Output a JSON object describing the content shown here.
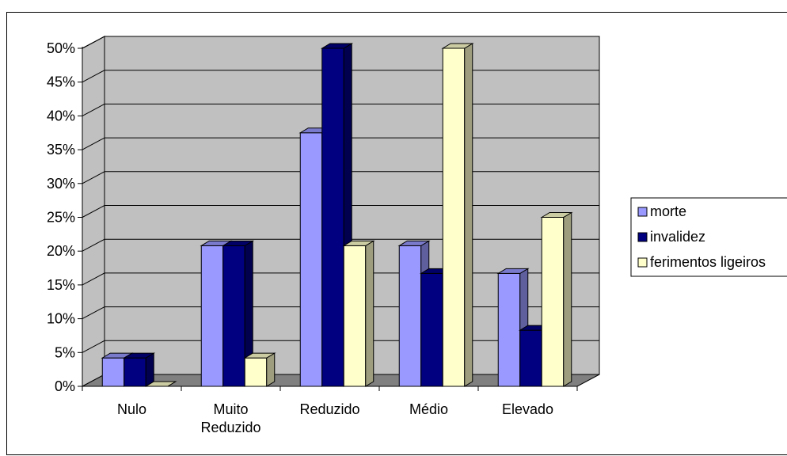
{
  "chart_data": {
    "type": "bar",
    "title": "",
    "xlabel": "",
    "ylabel": "",
    "categories": [
      "Nulo",
      "Muito Reduzido",
      "Reduzido",
      "Médio",
      "Elevado"
    ],
    "category_labels": [
      [
        "Nulo"
      ],
      [
        "Muito",
        "Reduzido"
      ],
      [
        "Reduzido"
      ],
      [
        "Médio"
      ],
      [
        "Elevado"
      ]
    ],
    "series": [
      {
        "name": "morte",
        "values": [
          4.2,
          20.8,
          37.5,
          20.8,
          16.7
        ]
      },
      {
        "name": "invalidez",
        "values": [
          4.2,
          20.8,
          50,
          16.7,
          8.3
        ]
      },
      {
        "name": "ferimentos ligeiros",
        "values": [
          0,
          4.2,
          20.8,
          50,
          25
        ]
      }
    ],
    "y_ticks": [
      "0%",
      "5%",
      "10%",
      "15%",
      "20%",
      "25%",
      "30%",
      "35%",
      "40%",
      "45%",
      "50%"
    ],
    "ylim": [
      0,
      50
    ],
    "grid": true,
    "legend_position": "right",
    "three_d": true,
    "colors": {
      "series": [
        "#9999ff",
        "#000080",
        "#ffffcc"
      ],
      "plot_wall": "#c0c0c0",
      "floor": "#808080",
      "gridline": "#000000"
    }
  }
}
